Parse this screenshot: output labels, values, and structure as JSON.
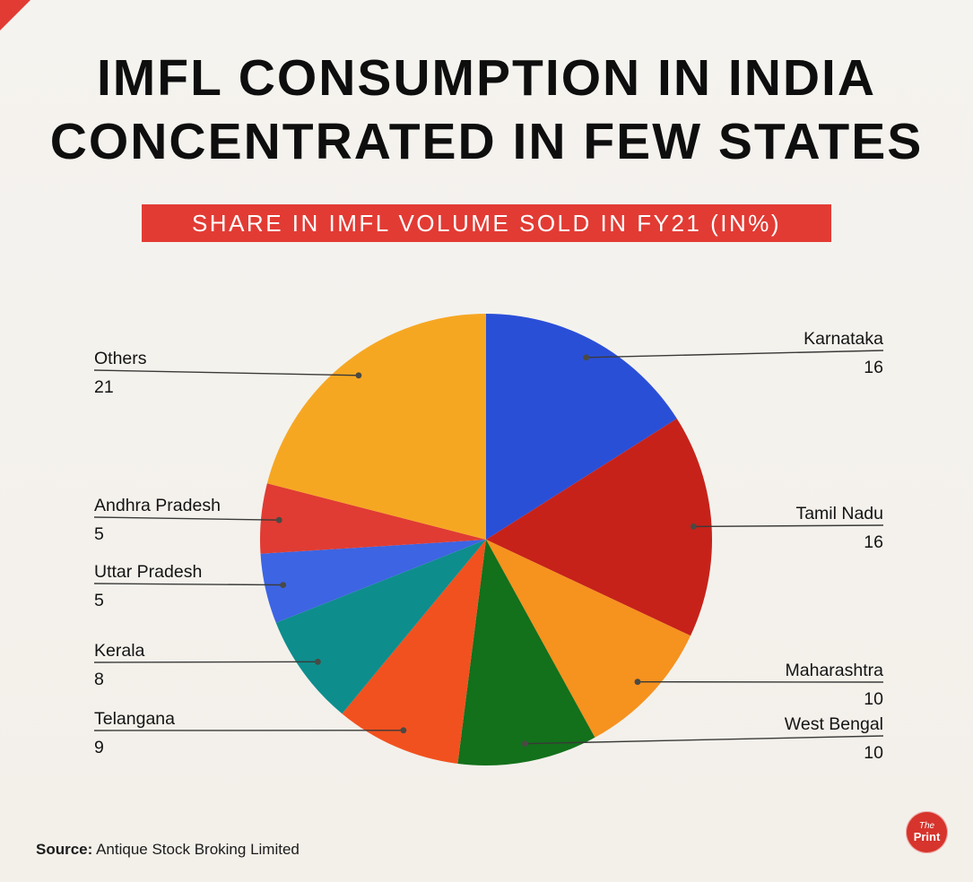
{
  "page": {
    "background": "#f4f2ee",
    "accent": "#e23b34"
  },
  "header": {
    "title_line1": "IMFL CONSUMPTION IN INDIA",
    "title_line2": "CONCENTRATED IN FEW STATES"
  },
  "chart_data": {
    "type": "pie",
    "title": "SHARE IN IMFL VOLUME SOLD IN FY21 (IN%)",
    "units": "percent",
    "total": 100,
    "start_angle_deg": 0,
    "direction": "clockwise",
    "slices": [
      {
        "name": "Karnataka",
        "value": 16,
        "color": "#2a4fd7"
      },
      {
        "name": "Tamil Nadu",
        "value": 16,
        "color": "#c6221a"
      },
      {
        "name": "Maharashtra",
        "value": 10,
        "color": "#f6921e"
      },
      {
        "name": "West Bengal",
        "value": 10,
        "color": "#13701b"
      },
      {
        "name": "Telangana",
        "value": 9,
        "color": "#f1511f"
      },
      {
        "name": "Kerala",
        "value": 8,
        "color": "#0e8d8d"
      },
      {
        "name": "Uttar Pradesh",
        "value": 5,
        "color": "#3d64e2"
      },
      {
        "name": "Andhra Pradesh",
        "value": 5,
        "color": "#e03c33"
      },
      {
        "name": "Others",
        "value": 21,
        "color": "#f6a722"
      }
    ]
  },
  "footer": {
    "source_label": "Source:",
    "source_text": " Antique Stock Broking Limited",
    "logo_line1": "The",
    "logo_line2": "Print"
  }
}
